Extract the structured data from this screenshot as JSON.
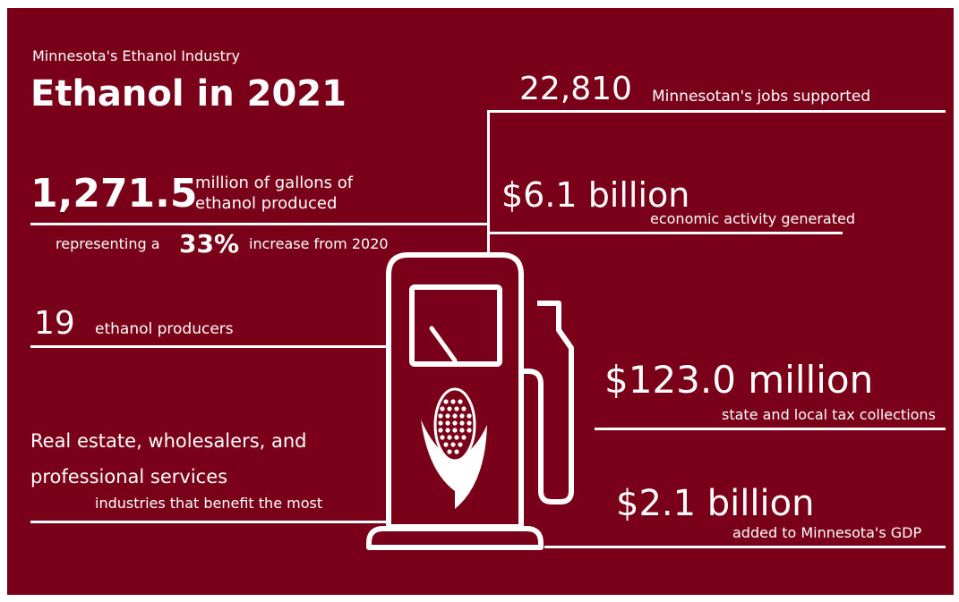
{
  "header": {
    "subtitle": "Minnesota's Ethanol Industry",
    "title": "Ethanol in 2021"
  },
  "stats": {
    "gallons_value": "1,271.5",
    "gallons_label_line1": "million of gallons of",
    "gallons_label_line2": "ethanol produced",
    "increase_prefix": "representing a",
    "increase_value": "33%",
    "increase_suffix": "increase from 2020",
    "producers_value": "19",
    "producers_label": "ethanol producers",
    "industries_line1": "Real estate, wholesalers, and",
    "industries_line2": "professional services",
    "industries_label": "industries that benefit the most",
    "jobs_value": "22,810",
    "jobs_label": "Minnesotan's jobs supported",
    "activity_value": "$6.1 billion",
    "activity_label": "economic activity generated",
    "tax_value": "$123.0 million",
    "tax_label": "state and local tax collections",
    "gdp_value": "$2.1 billion",
    "gdp_label": "added to Minnesota's GDP"
  },
  "colors": {
    "background": "#7a0019",
    "foreground": "#ffffff",
    "frame": "#ffffff"
  },
  "icons": {
    "pump": "fuel-pump-icon",
    "corn": "corn-leaf-icon"
  }
}
